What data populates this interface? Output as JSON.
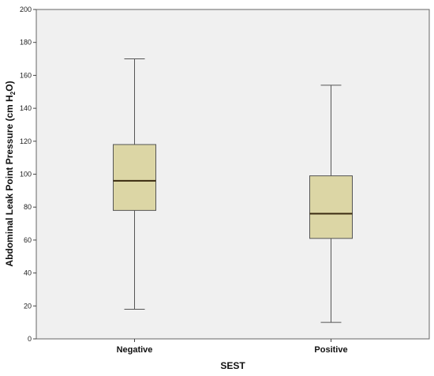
{
  "chart_data": {
    "type": "boxplot",
    "xlabel": "SEST",
    "ylabel": {
      "prefix": "Abdominal Leak Point Pressure (cm H",
      "subscript": "2",
      "suffix": "O)"
    },
    "ylim": [
      0,
      200
    ],
    "yticks": [
      0,
      20,
      40,
      60,
      80,
      100,
      120,
      140,
      160,
      180,
      200
    ],
    "categories": [
      "Negative",
      "Positive"
    ],
    "boxes": [
      {
        "category": "Negative",
        "min": 18,
        "q1": 78,
        "median": 96,
        "q3": 118,
        "max": 170
      },
      {
        "category": "Positive",
        "min": 10,
        "q1": 61,
        "median": 76,
        "q3": 99,
        "max": 154
      }
    ],
    "grid": false,
    "colors": {
      "box_fill": "#dcd6a5",
      "plot_background": "#f0f0f0",
      "lines": "#555555",
      "median": "#3a2a10"
    }
  }
}
